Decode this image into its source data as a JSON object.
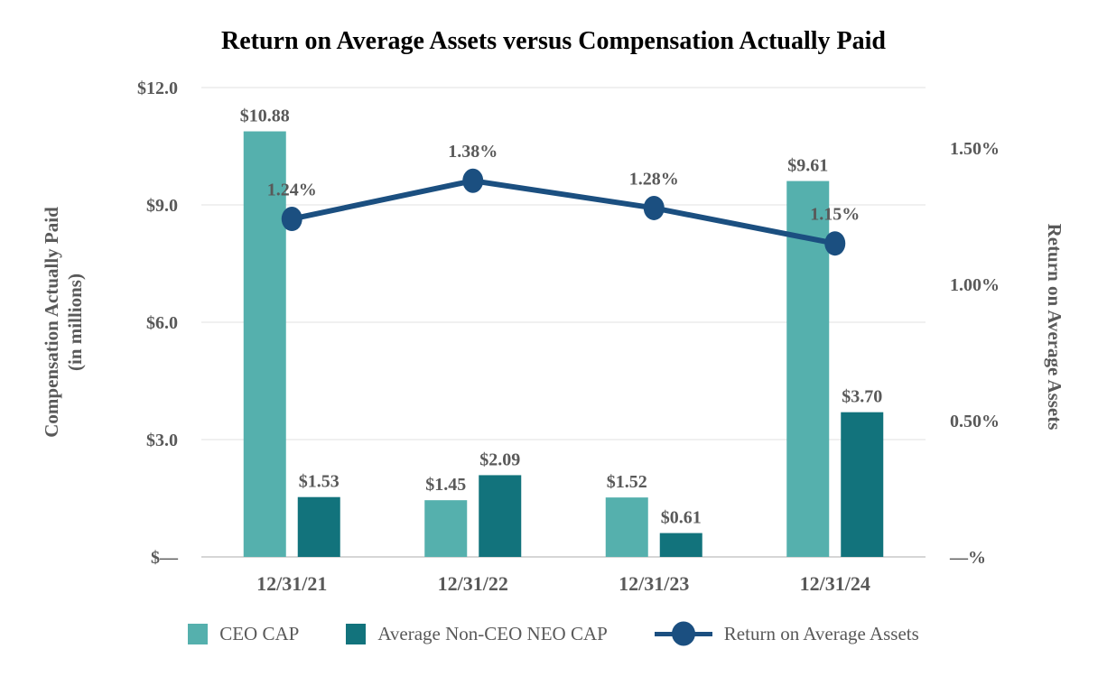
{
  "title": "Return on Average Assets versus Compensation Actually Paid",
  "left_axis": {
    "title_line1": "Compensation Actually Paid",
    "title_line2": "(in millions)"
  },
  "right_axis": {
    "title": "Return on Average Assets"
  },
  "colors": {
    "bar_ceo_cap": "#55B0AD",
    "bar_non_ceo_cap": "#12737C",
    "line_roaa": "#1B4F80",
    "text_gray": "#595959",
    "title_black": "#000000",
    "gridline": "#E7E7E7",
    "baseline": "#D6D6D6"
  },
  "chart_data": {
    "type": "combo",
    "title": "Return on Average Assets versus Compensation Actually Paid",
    "categories": [
      "12/31/21",
      "12/31/22",
      "12/31/23",
      "12/31/24"
    ],
    "series": [
      {
        "name": "CEO CAP",
        "chart_type": "bar",
        "axis": "left",
        "color": "#55B0AD",
        "values": [
          10.88,
          1.45,
          1.52,
          9.61
        ],
        "data_labels": [
          "$10.88",
          "$1.45",
          "$1.52",
          "$9.61"
        ]
      },
      {
        "name": "Average Non-CEO NEO CAP",
        "chart_type": "bar",
        "axis": "left",
        "color": "#12737C",
        "values": [
          1.53,
          2.09,
          0.61,
          3.7
        ],
        "data_labels": [
          "$1.53",
          "$2.09",
          "$0.61",
          "$3.70"
        ]
      },
      {
        "name": "Return on Average Assets",
        "chart_type": "line",
        "axis": "right",
        "color": "#1B4F80",
        "values": [
          1.24,
          1.38,
          1.28,
          1.15
        ],
        "data_labels": [
          "1.24%",
          "1.38%",
          "1.28%",
          "1.15%"
        ]
      }
    ],
    "left_axis_ticks": [
      {
        "label": "$12.0",
        "value": 12
      },
      {
        "label": "$9.0",
        "value": 9
      },
      {
        "label": "$6.0",
        "value": 6
      },
      {
        "label": "$3.0",
        "value": 3
      },
      {
        "label": "$—",
        "value": 0
      }
    ],
    "right_axis_ticks": [
      {
        "label": "1.50%",
        "value": 1.5
      },
      {
        "label": "1.00%",
        "value": 1.0
      },
      {
        "label": "0.50%",
        "value": 0.5
      },
      {
        "label": "—%",
        "value": 0
      }
    ],
    "left_ylabel": "Compensation Actually Paid (in millions)",
    "right_ylabel": "Return on Average Assets",
    "left_ylim": [
      0,
      12
    ],
    "right_ylim": [
      0,
      1.5
    ],
    "grid": true,
    "legend_position": "bottom"
  }
}
